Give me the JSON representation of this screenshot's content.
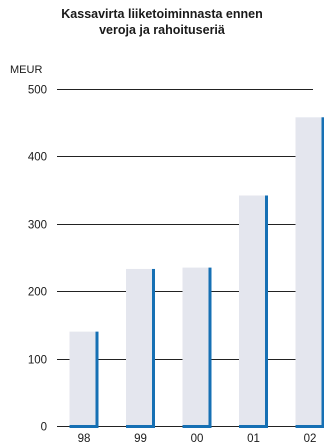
{
  "chart_data": {
    "type": "bar",
    "title_lines": [
      "Kassavirta liiketoiminnasta ennen",
      "veroja ja rahoituseriä"
    ],
    "ylabel": "MEUR",
    "categories": [
      "98",
      "99",
      "00",
      "01",
      "02"
    ],
    "values": [
      140,
      233,
      235,
      342,
      458
    ],
    "ylim": [
      0,
      500
    ],
    "yticks": [
      0,
      100,
      200,
      300,
      400,
      500
    ],
    "grid": true,
    "colors": {
      "bar_face": "#e4e6ee",
      "bar_edge": "#1670b4",
      "grid": "#222222"
    }
  }
}
